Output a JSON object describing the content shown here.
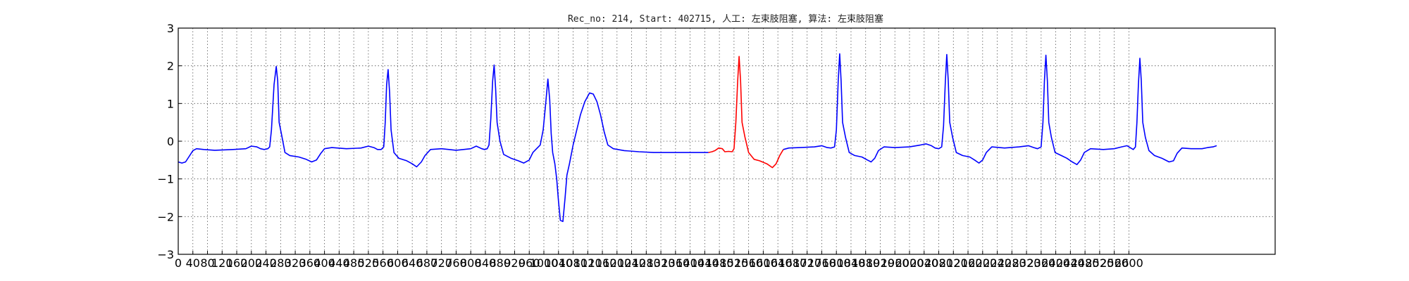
{
  "chart_data": {
    "type": "line",
    "title": "Rec_no: 214, Start: 402715, 人工: 左束肢阻塞, 算法: 左束肢阻塞",
    "xlabel": "",
    "ylabel": "",
    "xlim": [
      0,
      3000
    ],
    "ylim": [
      -3,
      3
    ],
    "grid": true,
    "x_tick_step": 40,
    "x_ticks": [
      "0",
      "40",
      "80",
      "120",
      "160",
      "200",
      "240",
      "280",
      "320",
      "360",
      "400",
      "440",
      "480",
      "520",
      "560",
      "600",
      "640",
      "680",
      "720",
      "760",
      "800",
      "840",
      "880",
      "920",
      "960",
      "1000",
      "1040",
      "1080",
      "1120",
      "1160",
      "1200",
      "1240",
      "1280",
      "1320",
      "1360",
      "1400",
      "1440",
      "1480",
      "1520",
      "1560",
      "1600",
      "1640",
      "1680",
      "1720",
      "1760",
      "1800",
      "1840",
      "1880",
      "1920",
      "1960",
      "2000",
      "2040",
      "2080",
      "2120",
      "2160",
      "2200",
      "2240",
      "2280",
      "2320",
      "2360",
      "2400",
      "2440",
      "2480",
      "2520",
      "2560",
      "2600"
    ],
    "y_ticks": [
      "3",
      "2",
      "1",
      "0",
      "−1",
      "−2",
      "−3"
    ],
    "y_tick_values": [
      3,
      2,
      1,
      0,
      -1,
      -2,
      -3
    ],
    "colors": {
      "normal": "#0000ff",
      "highlight": "#ff0000"
    },
    "series": [
      {
        "color": "#0000ff",
        "points": [
          [
            0,
            -0.55
          ],
          [
            10,
            -0.58
          ],
          [
            20,
            -0.55
          ],
          [
            30,
            -0.4
          ],
          [
            40,
            -0.25
          ],
          [
            50,
            -0.2
          ],
          [
            70,
            -0.22
          ],
          [
            100,
            -0.24
          ],
          [
            150,
            -0.22
          ],
          [
            185,
            -0.2
          ],
          [
            200,
            -0.13
          ],
          [
            215,
            -0.15
          ],
          [
            225,
            -0.2
          ],
          [
            235,
            -0.22
          ],
          [
            245,
            -0.2
          ],
          [
            250,
            -0.15
          ],
          [
            255,
            0.3
          ],
          [
            262,
            1.5
          ],
          [
            268,
            1.98
          ],
          [
            272,
            1.6
          ],
          [
            276,
            0.5
          ],
          [
            282,
            0.2
          ],
          [
            292,
            -0.3
          ],
          [
            305,
            -0.38
          ],
          [
            330,
            -0.42
          ],
          [
            350,
            -0.48
          ],
          [
            365,
            -0.55
          ],
          [
            378,
            -0.5
          ],
          [
            390,
            -0.32
          ],
          [
            400,
            -0.2
          ],
          [
            420,
            -0.17
          ],
          [
            460,
            -0.2
          ],
          [
            500,
            -0.18
          ],
          [
            520,
            -0.13
          ],
          [
            535,
            -0.17
          ],
          [
            545,
            -0.22
          ],
          [
            555,
            -0.22
          ],
          [
            562,
            -0.15
          ],
          [
            566,
            0.5
          ],
          [
            570,
            1.5
          ],
          [
            574,
            1.9
          ],
          [
            578,
            1.3
          ],
          [
            582,
            0.3
          ],
          [
            590,
            -0.3
          ],
          [
            603,
            -0.45
          ],
          [
            625,
            -0.52
          ],
          [
            640,
            -0.6
          ],
          [
            652,
            -0.68
          ],
          [
            665,
            -0.55
          ],
          [
            675,
            -0.38
          ],
          [
            690,
            -0.22
          ],
          [
            720,
            -0.2
          ],
          [
            760,
            -0.24
          ],
          [
            800,
            -0.2
          ],
          [
            815,
            -0.13
          ],
          [
            830,
            -0.2
          ],
          [
            838,
            -0.22
          ],
          [
            845,
            -0.2
          ],
          [
            850,
            -0.1
          ],
          [
            855,
            0.6
          ],
          [
            860,
            1.6
          ],
          [
            864,
            2.02
          ],
          [
            868,
            1.4
          ],
          [
            872,
            0.5
          ],
          [
            880,
            0.0
          ],
          [
            890,
            -0.35
          ],
          [
            910,
            -0.45
          ],
          [
            930,
            -0.52
          ],
          [
            945,
            -0.58
          ],
          [
            960,
            -0.5
          ],
          [
            970,
            -0.3
          ],
          [
            980,
            -0.2
          ],
          [
            990,
            -0.1
          ],
          [
            998,
            0.3
          ],
          [
            1005,
            1.0
          ],
          [
            1011,
            1.65
          ],
          [
            1016,
            1.1
          ],
          [
            1020,
            0.2
          ],
          [
            1024,
            -0.3
          ],
          [
            1030,
            -0.6
          ],
          [
            1035,
            -1.0
          ],
          [
            1040,
            -1.6
          ],
          [
            1045,
            -2.1
          ],
          [
            1052,
            -2.13
          ],
          [
            1058,
            -1.5
          ],
          [
            1063,
            -0.9
          ],
          [
            1070,
            -0.6
          ],
          [
            1080,
            -0.1
          ],
          [
            1090,
            0.3
          ],
          [
            1100,
            0.7
          ],
          [
            1112,
            1.05
          ],
          [
            1125,
            1.28
          ],
          [
            1135,
            1.25
          ],
          [
            1145,
            1.05
          ],
          [
            1155,
            0.7
          ],
          [
            1165,
            0.25
          ],
          [
            1175,
            -0.1
          ],
          [
            1190,
            -0.2
          ],
          [
            1220,
            -0.25
          ],
          [
            1260,
            -0.28
          ],
          [
            1300,
            -0.3
          ],
          [
            1340,
            -0.3
          ],
          [
            1380,
            -0.3
          ],
          [
            1420,
            -0.3
          ],
          [
            1450,
            -0.3
          ]
        ]
      },
      {
        "color": "#ff0000",
        "points": [
          [
            1450,
            -0.3
          ],
          [
            1460,
            -0.28
          ],
          [
            1468,
            -0.25
          ],
          [
            1478,
            -0.18
          ],
          [
            1488,
            -0.2
          ],
          [
            1495,
            -0.28
          ],
          [
            1505,
            -0.27
          ],
          [
            1515,
            -0.28
          ],
          [
            1520,
            -0.2
          ],
          [
            1525,
            0.5
          ],
          [
            1530,
            1.6
          ],
          [
            1534,
            2.25
          ],
          [
            1538,
            1.6
          ],
          [
            1542,
            0.5
          ],
          [
            1550,
            0.1
          ],
          [
            1560,
            -0.3
          ],
          [
            1575,
            -0.48
          ],
          [
            1590,
            -0.52
          ],
          [
            1610,
            -0.6
          ],
          [
            1625,
            -0.7
          ],
          [
            1635,
            -0.6
          ],
          [
            1645,
            -0.38
          ],
          [
            1655,
            -0.22
          ]
        ]
      },
      {
        "color": "#0000ff",
        "points": [
          [
            1655,
            -0.22
          ],
          [
            1670,
            -0.18
          ],
          [
            1700,
            -0.17
          ],
          [
            1740,
            -0.15
          ],
          [
            1760,
            -0.12
          ],
          [
            1775,
            -0.17
          ],
          [
            1785,
            -0.18
          ],
          [
            1795,
            -0.15
          ],
          [
            1800,
            0.3
          ],
          [
            1805,
            1.6
          ],
          [
            1809,
            2.32
          ],
          [
            1813,
            1.6
          ],
          [
            1817,
            0.5
          ],
          [
            1825,
            0.1
          ],
          [
            1835,
            -0.3
          ],
          [
            1850,
            -0.38
          ],
          [
            1870,
            -0.42
          ],
          [
            1885,
            -0.5
          ],
          [
            1895,
            -0.55
          ],
          [
            1905,
            -0.45
          ],
          [
            1915,
            -0.25
          ],
          [
            1930,
            -0.15
          ],
          [
            1960,
            -0.17
          ],
          [
            2000,
            -0.15
          ],
          [
            2030,
            -0.1
          ],
          [
            2045,
            -0.07
          ],
          [
            2060,
            -0.12
          ],
          [
            2070,
            -0.18
          ],
          [
            2080,
            -0.2
          ],
          [
            2088,
            -0.15
          ],
          [
            2093,
            0.4
          ],
          [
            2098,
            1.6
          ],
          [
            2102,
            2.3
          ],
          [
            2106,
            1.6
          ],
          [
            2110,
            0.5
          ],
          [
            2118,
            0.1
          ],
          [
            2128,
            -0.3
          ],
          [
            2145,
            -0.38
          ],
          [
            2165,
            -0.42
          ],
          [
            2178,
            -0.5
          ],
          [
            2190,
            -0.58
          ],
          [
            2200,
            -0.5
          ],
          [
            2210,
            -0.3
          ],
          [
            2225,
            -0.15
          ],
          [
            2260,
            -0.18
          ],
          [
            2300,
            -0.15
          ],
          [
            2325,
            -0.12
          ],
          [
            2340,
            -0.17
          ],
          [
            2350,
            -0.2
          ],
          [
            2360,
            -0.15
          ],
          [
            2365,
            0.5
          ],
          [
            2369,
            1.6
          ],
          [
            2373,
            2.28
          ],
          [
            2377,
            1.6
          ],
          [
            2381,
            0.5
          ],
          [
            2388,
            0.1
          ],
          [
            2398,
            -0.3
          ],
          [
            2415,
            -0.38
          ],
          [
            2430,
            -0.45
          ],
          [
            2445,
            -0.55
          ],
          [
            2458,
            -0.62
          ],
          [
            2468,
            -0.5
          ],
          [
            2478,
            -0.3
          ],
          [
            2495,
            -0.2
          ],
          [
            2530,
            -0.22
          ],
          [
            2560,
            -0.2
          ],
          [
            2580,
            -0.15
          ],
          [
            2595,
            -0.12
          ],
          [
            2605,
            -0.18
          ],
          [
            2612,
            -0.22
          ],
          [
            2618,
            -0.15
          ],
          [
            2622,
            0.5
          ],
          [
            2626,
            1.5
          ],
          [
            2630,
            2.2
          ],
          [
            2634,
            1.6
          ],
          [
            2638,
            0.5
          ],
          [
            2645,
            0.1
          ],
          [
            2655,
            -0.25
          ],
          [
            2670,
            -0.38
          ],
          [
            2690,
            -0.45
          ],
          [
            2710,
            -0.55
          ],
          [
            2722,
            -0.52
          ],
          [
            2732,
            -0.32
          ],
          [
            2745,
            -0.18
          ],
          [
            2770,
            -0.2
          ],
          [
            2800,
            -0.2
          ],
          [
            2815,
            -0.17
          ],
          [
            2830,
            -0.15
          ],
          [
            2840,
            -0.12
          ]
        ]
      }
    ]
  }
}
